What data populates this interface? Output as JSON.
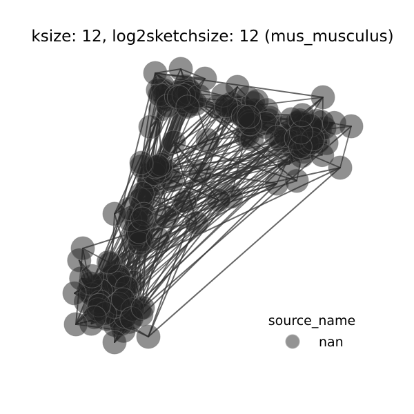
{
  "figure": {
    "title": "ksize: 12, log2sketchsize: 12 (mus_musculus)"
  },
  "legend": {
    "title": "source_name",
    "entries": [
      {
        "label": "nan",
        "color": "#808080"
      }
    ]
  },
  "style": {
    "node_fill": "#222222",
    "node_outline": "#777777",
    "edge_color": "#333333"
  }
}
